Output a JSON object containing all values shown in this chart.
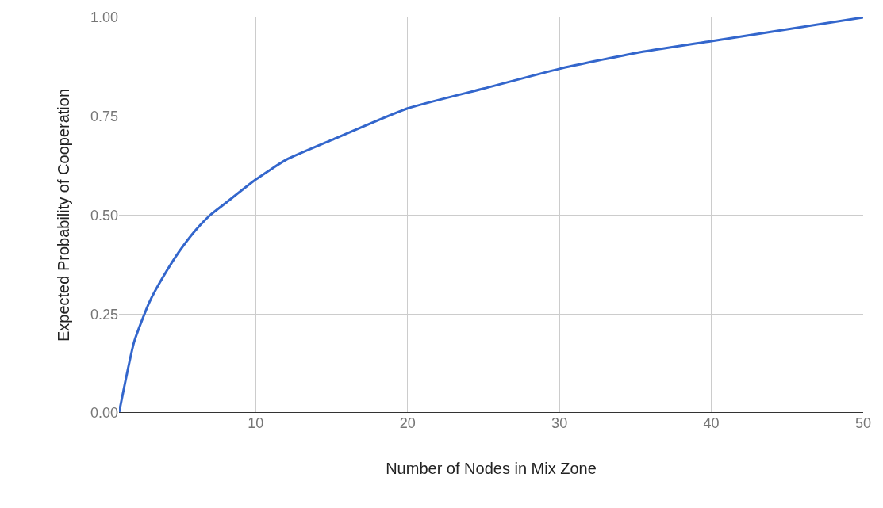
{
  "chart_data": {
    "type": "line",
    "xlabel": "Number of Nodes in Mix Zone",
    "ylabel": "Expected Probability of Cooperation",
    "x": [
      1,
      2,
      3,
      4,
      5,
      6,
      7,
      8,
      10,
      12,
      15,
      20,
      25,
      30,
      35,
      40,
      45,
      50
    ],
    "series": [
      {
        "color": "#3366cc",
        "values": [
          0,
          0.18,
          0.28,
          0.35,
          0.41,
          0.46,
          0.5,
          0.53,
          0.59,
          0.64,
          0.69,
          0.77,
          0.82,
          0.87,
          0.91,
          0.94,
          0.97,
          1.0
        ]
      }
    ],
    "xlim": [
      1,
      50
    ],
    "xticks": [
      10,
      20,
      30,
      40,
      50
    ],
    "ylim": [
      0,
      1
    ],
    "yticks": [
      {
        "value": 0,
        "label": "0.00"
      },
      {
        "value": 0.25,
        "label": "0.25"
      },
      {
        "value": 0.5,
        "label": "0.50"
      },
      {
        "value": 0.75,
        "label": "0.75"
      },
      {
        "value": 1,
        "label": "1.00"
      }
    ],
    "grid": true
  }
}
